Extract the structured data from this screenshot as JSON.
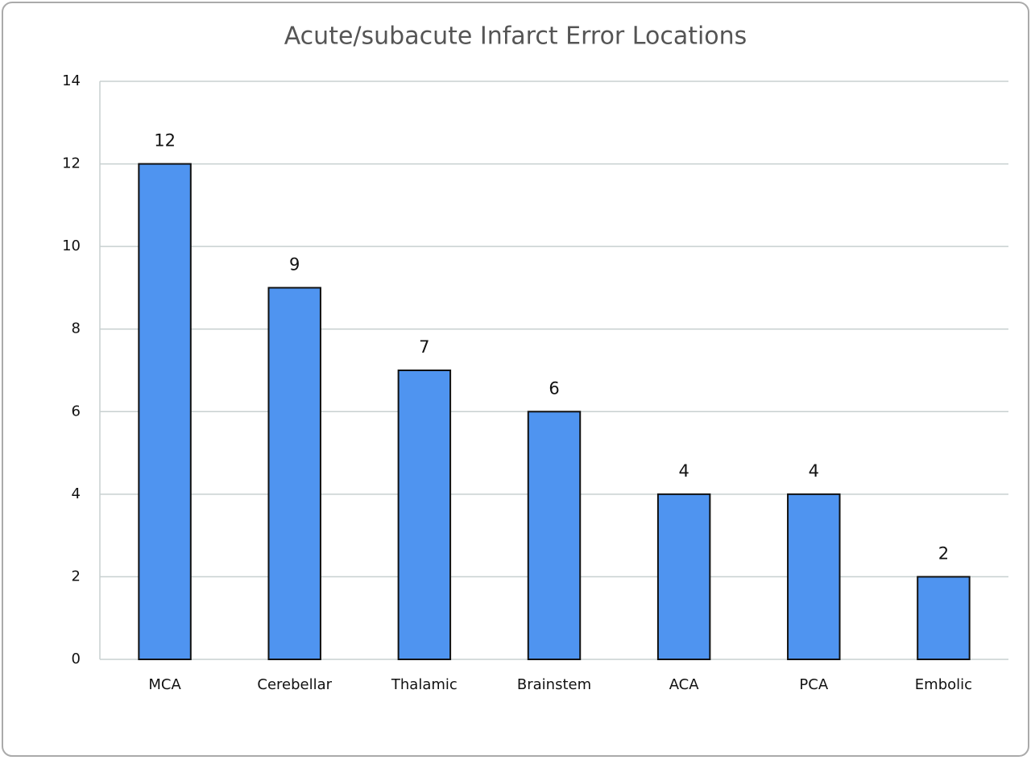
{
  "chart_data": {
    "type": "bar",
    "title": "Acute/subacute Infarct Error Locations",
    "categories": [
      "MCA",
      "Cerebellar",
      "Thalamic",
      "Brainstem",
      "ACA",
      "PCA",
      "Embolic"
    ],
    "values": [
      12,
      9,
      7,
      6,
      4,
      4,
      2
    ],
    "color": "#4f94f0",
    "ylim": [
      0,
      14
    ],
    "yticks": [
      0,
      2,
      4,
      6,
      8,
      10,
      12,
      14
    ],
    "grid": true
  }
}
